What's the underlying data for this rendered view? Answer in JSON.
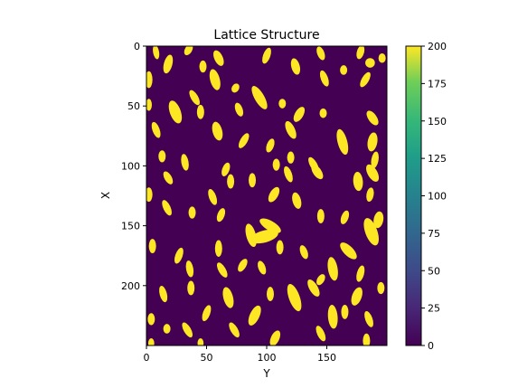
{
  "chart_data": {
    "type": "heatmap",
    "title": "Lattice Structure",
    "xlabel": "Y",
    "ylabel": "X",
    "grid": false,
    "xlim": [
      0,
      200
    ],
    "ylim": [
      250,
      0
    ],
    "x_ticks": [
      "0",
      "50",
      "100",
      "150"
    ],
    "y_ticks": [
      "0",
      "50",
      "100",
      "150",
      "200"
    ],
    "colorbar": {
      "range": [
        0,
        200
      ],
      "ticks": [
        "0",
        "25",
        "50",
        "75",
        "100",
        "125",
        "150",
        "175",
        "200"
      ],
      "colormap": "viridis"
    },
    "values": [
      0,
      200
    ],
    "background_color": "#440154",
    "fill_color": "#fde725",
    "blobs": [
      {
        "y": 8,
        "x": 5,
        "ry": 6,
        "rx": 2.5,
        "angle": -10
      },
      {
        "y": 35,
        "x": 3,
        "ry": 5,
        "rx": 3,
        "angle": 30
      },
      {
        "y": 60,
        "x": 10,
        "ry": 7,
        "rx": 3.5,
        "angle": -25
      },
      {
        "y": 100,
        "x": 8,
        "ry": 7,
        "rx": 3,
        "angle": 20
      },
      {
        "y": 145,
        "x": 6,
        "ry": 6,
        "rx": 3,
        "angle": -20
      },
      {
        "y": 178,
        "x": 5,
        "ry": 6,
        "rx": 3,
        "angle": 15
      },
      {
        "y": 186,
        "x": 14,
        "ry": 4,
        "rx": 4,
        "angle": 0
      },
      {
        "y": 196,
        "x": 10,
        "ry": 4,
        "rx": 3,
        "angle": 0
      },
      {
        "y": 18,
        "x": 15,
        "ry": 8,
        "rx": 3.5,
        "angle": 15
      },
      {
        "y": 2,
        "x": 28,
        "ry": 7,
        "rx": 3,
        "angle": 0
      },
      {
        "y": 47,
        "x": 17,
        "ry": 5,
        "rx": 3,
        "angle": 0
      },
      {
        "y": 124,
        "x": 17,
        "ry": 7,
        "rx": 3.5,
        "angle": -15
      },
      {
        "y": 164,
        "x": 20,
        "ry": 4,
        "rx": 3,
        "angle": 0
      },
      {
        "y": 57,
        "x": 28,
        "ry": 9,
        "rx": 4,
        "angle": -15
      },
      {
        "y": 74,
        "x": 35,
        "ry": 4,
        "rx": 3,
        "angle": 30
      },
      {
        "y": 148,
        "x": 27,
        "ry": 7,
        "rx": 3,
        "angle": -20
      },
      {
        "y": 182,
        "x": 28,
        "ry": 7,
        "rx": 3,
        "angle": 30
      },
      {
        "y": 40,
        "x": 43,
        "ry": 7,
        "rx": 3,
        "angle": -30
      },
      {
        "y": 94,
        "x": 43,
        "ry": 11,
        "rx": 4,
        "angle": -30
      },
      {
        "y": 2,
        "x": 49,
        "ry": 5,
        "rx": 2.5,
        "angle": 0
      },
      {
        "y": 24,
        "x": 55,
        "ry": 10,
        "rx": 4.5,
        "angle": -20
      },
      {
        "y": 45,
        "x": 55,
        "ry": 6,
        "rx": 3,
        "angle": 0
      },
      {
        "y": 77,
        "x": 53,
        "ry": 6,
        "rx": 3,
        "angle": -20
      },
      {
        "y": 113,
        "x": 48,
        "ry": 4,
        "rx": 3,
        "angle": 0
      },
      {
        "y": 127,
        "x": 57,
        "ry": 7,
        "rx": 3.5,
        "angle": 30
      },
      {
        "y": 147,
        "x": 56,
        "ry": 4,
        "rx": 3,
        "angle": 0
      },
      {
        "y": 188,
        "x": 60,
        "ry": 7,
        "rx": 3.5,
        "angle": -35
      },
      {
        "y": 8,
        "x": 70,
        "ry": 7,
        "rx": 3,
        "angle": -20
      },
      {
        "y": 59,
        "x": 71,
        "ry": 8,
        "rx": 4,
        "angle": -15
      },
      {
        "y": 81,
        "x": 79,
        "ry": 7,
        "rx": 3,
        "angle": 30
      },
      {
        "y": 120,
        "x": 70,
        "ry": 8,
        "rx": 3.5,
        "angle": -25
      },
      {
        "y": 163,
        "x": 80,
        "ry": 11,
        "rx": 4,
        "angle": -15
      },
      {
        "y": 188,
        "x": 80,
        "ry": 8,
        "rx": 4,
        "angle": 10
      },
      {
        "y": 103,
        "x": 83,
        "ry": 6,
        "rx": 3,
        "angle": 20
      },
      {
        "y": 32,
        "x": 97,
        "ry": 7,
        "rx": 3,
        "angle": -10
      },
      {
        "y": 13,
        "x": 92,
        "ry": 5,
        "rx": 3,
        "angle": 0
      },
      {
        "y": 139,
        "x": 99,
        "ry": 7,
        "rx": 3,
        "angle": -30
      },
      {
        "y": 120,
        "x": 93,
        "ry": 5,
        "rx": 3,
        "angle": 0
      },
      {
        "y": 108,
        "x": 99,
        "ry": 5,
        "rx": 3,
        "angle": 0
      },
      {
        "y": 190,
        "x": 95,
        "ry": 7,
        "rx": 3,
        "angle": 10
      },
      {
        "y": 18,
        "x": 110,
        "ry": 6,
        "rx": 3,
        "angle": -30
      },
      {
        "y": 66,
        "x": 103,
        "ry": 6,
        "rx": 3,
        "angle": 20
      },
      {
        "y": 142,
        "x": 105,
        "ry": 7,
        "rx": 3.5,
        "angle": -35
      },
      {
        "y": 176,
        "x": 113,
        "ry": 8,
        "rx": 4,
        "angle": -5
      },
      {
        "y": 188,
        "x": 106,
        "ry": 8,
        "rx": 4,
        "angle": -30
      },
      {
        "y": 70,
        "x": 113,
        "ry": 6,
        "rx": 3,
        "angle": 0
      },
      {
        "y": 88,
        "x": 112,
        "ry": 6,
        "rx": 3,
        "angle": 0
      },
      {
        "y": 118,
        "x": 107,
        "ry": 7,
        "rx": 3,
        "angle": -20
      },
      {
        "y": 2,
        "x": 124,
        "ry": 6,
        "rx": 3,
        "angle": 0
      },
      {
        "y": 55,
        "x": 126,
        "ry": 7,
        "rx": 3,
        "angle": -20
      },
      {
        "y": 106,
        "x": 124,
        "ry": 7,
        "rx": 3.5,
        "angle": 30
      },
      {
        "y": 125,
        "x": 129,
        "ry": 7,
        "rx": 3.5,
        "angle": -15
      },
      {
        "y": 186,
        "x": 124,
        "ry": 6,
        "rx": 3,
        "angle": 10
      },
      {
        "y": 17,
        "x": 135,
        "ry": 7,
        "rx": 3,
        "angle": -25
      },
      {
        "y": 38,
        "x": 139,
        "ry": 5,
        "rx": 3,
        "angle": 0
      },
      {
        "y": 62,
        "x": 141,
        "ry": 6,
        "rx": 3,
        "angle": 20
      },
      {
        "y": 145,
        "x": 142,
        "ry": 6,
        "rx": 3,
        "angle": 0
      },
      {
        "y": 165,
        "x": 143,
        "ry": 6,
        "rx": 3,
        "angle": 20
      },
      {
        "y": 103,
        "x": 150,
        "ry": 10,
        "rx": 4,
        "angle": -60
      },
      {
        "y": 87,
        "x": 158,
        "ry": 10,
        "rx": 4,
        "angle": -15
      },
      {
        "y": 98,
        "x": 159,
        "ry": 12,
        "rx": 5,
        "angle": 75
      },
      {
        "y": 187,
        "x": 155,
        "ry": 12,
        "rx": 5,
        "angle": -20
      },
      {
        "y": 193,
        "x": 145,
        "ry": 7,
        "rx": 4,
        "angle": 10
      },
      {
        "y": 5,
        "x": 167,
        "ry": 6,
        "rx": 3,
        "angle": 0
      },
      {
        "y": 27,
        "x": 175,
        "ry": 7,
        "rx": 3,
        "angle": 20
      },
      {
        "y": 60,
        "x": 169,
        "ry": 7,
        "rx": 3,
        "angle": 0
      },
      {
        "y": 111,
        "x": 168,
        "ry": 6,
        "rx": 3,
        "angle": 0
      },
      {
        "y": 131,
        "x": 172,
        "ry": 6,
        "rx": 3,
        "angle": -20
      },
      {
        "y": 168,
        "x": 171,
        "ry": 9,
        "rx": 4,
        "angle": -45
      },
      {
        "y": 36,
        "x": 186,
        "ry": 7,
        "rx": 3,
        "angle": -10
      },
      {
        "y": 63,
        "x": 187,
        "ry": 7,
        "rx": 3,
        "angle": -30
      },
      {
        "y": 80,
        "x": 183,
        "ry": 6,
        "rx": 3,
        "angle": 30
      },
      {
        "y": 96,
        "x": 185,
        "ry": 6,
        "rx": 3,
        "angle": -20
      },
      {
        "y": 155,
        "x": 186,
        "ry": 10,
        "rx": 4,
        "angle": -10
      },
      {
        "y": 178,
        "x": 190,
        "ry": 7,
        "rx": 3,
        "angle": 15
      },
      {
        "y": 145,
        "x": 195,
        "ry": 5,
        "rx": 3,
        "angle": 30
      },
      {
        "y": 14,
        "x": 207,
        "ry": 7,
        "rx": 3,
        "angle": -15
      },
      {
        "y": 37,
        "x": 202,
        "ry": 6,
        "rx": 3,
        "angle": 0
      },
      {
        "y": 68,
        "x": 210,
        "ry": 9,
        "rx": 4,
        "angle": -15
      },
      {
        "y": 103,
        "x": 207,
        "ry": 6,
        "rx": 3,
        "angle": 0
      },
      {
        "y": 123,
        "x": 210,
        "ry": 12,
        "rx": 4.5,
        "angle": -20
      },
      {
        "y": 139,
        "x": 202,
        "ry": 8,
        "rx": 3.5,
        "angle": -30
      },
      {
        "y": 175,
        "x": 209,
        "ry": 8,
        "rx": 4,
        "angle": 20
      },
      {
        "y": 195,
        "x": 202,
        "ry": 5,
        "rx": 3,
        "angle": 0
      },
      {
        "y": 50,
        "x": 223,
        "ry": 7,
        "rx": 3,
        "angle": 20
      },
      {
        "y": 90,
        "x": 225,
        "ry": 9,
        "rx": 4,
        "angle": 25
      },
      {
        "y": 155,
        "x": 226,
        "ry": 10,
        "rx": 4,
        "angle": -5
      },
      {
        "y": 165,
        "x": 222,
        "ry": 6,
        "rx": 3,
        "angle": 0
      },
      {
        "y": 185,
        "x": 228,
        "ry": 7,
        "rx": 3,
        "angle": -20
      },
      {
        "y": 4,
        "x": 228,
        "ry": 5,
        "rx": 3,
        "angle": 0
      },
      {
        "y": 17,
        "x": 236,
        "ry": 4,
        "rx": 3,
        "angle": 0
      },
      {
        "y": 34,
        "x": 237,
        "ry": 7,
        "rx": 3,
        "angle": -30
      },
      {
        "y": 73,
        "x": 237,
        "ry": 7,
        "rx": 3,
        "angle": -30
      },
      {
        "y": 107,
        "x": 244,
        "ry": 7,
        "rx": 3.5,
        "angle": 25
      },
      {
        "y": 145,
        "x": 240,
        "ry": 7,
        "rx": 3,
        "angle": -25
      },
      {
        "y": 4,
        "x": 248,
        "ry": 4,
        "rx": 2.5,
        "angle": 0
      },
      {
        "y": 45,
        "x": 248,
        "ry": 4,
        "rx": 2.5,
        "angle": 0
      },
      {
        "y": 183,
        "x": 246,
        "ry": 6,
        "rx": 3,
        "angle": 0
      }
    ]
  }
}
